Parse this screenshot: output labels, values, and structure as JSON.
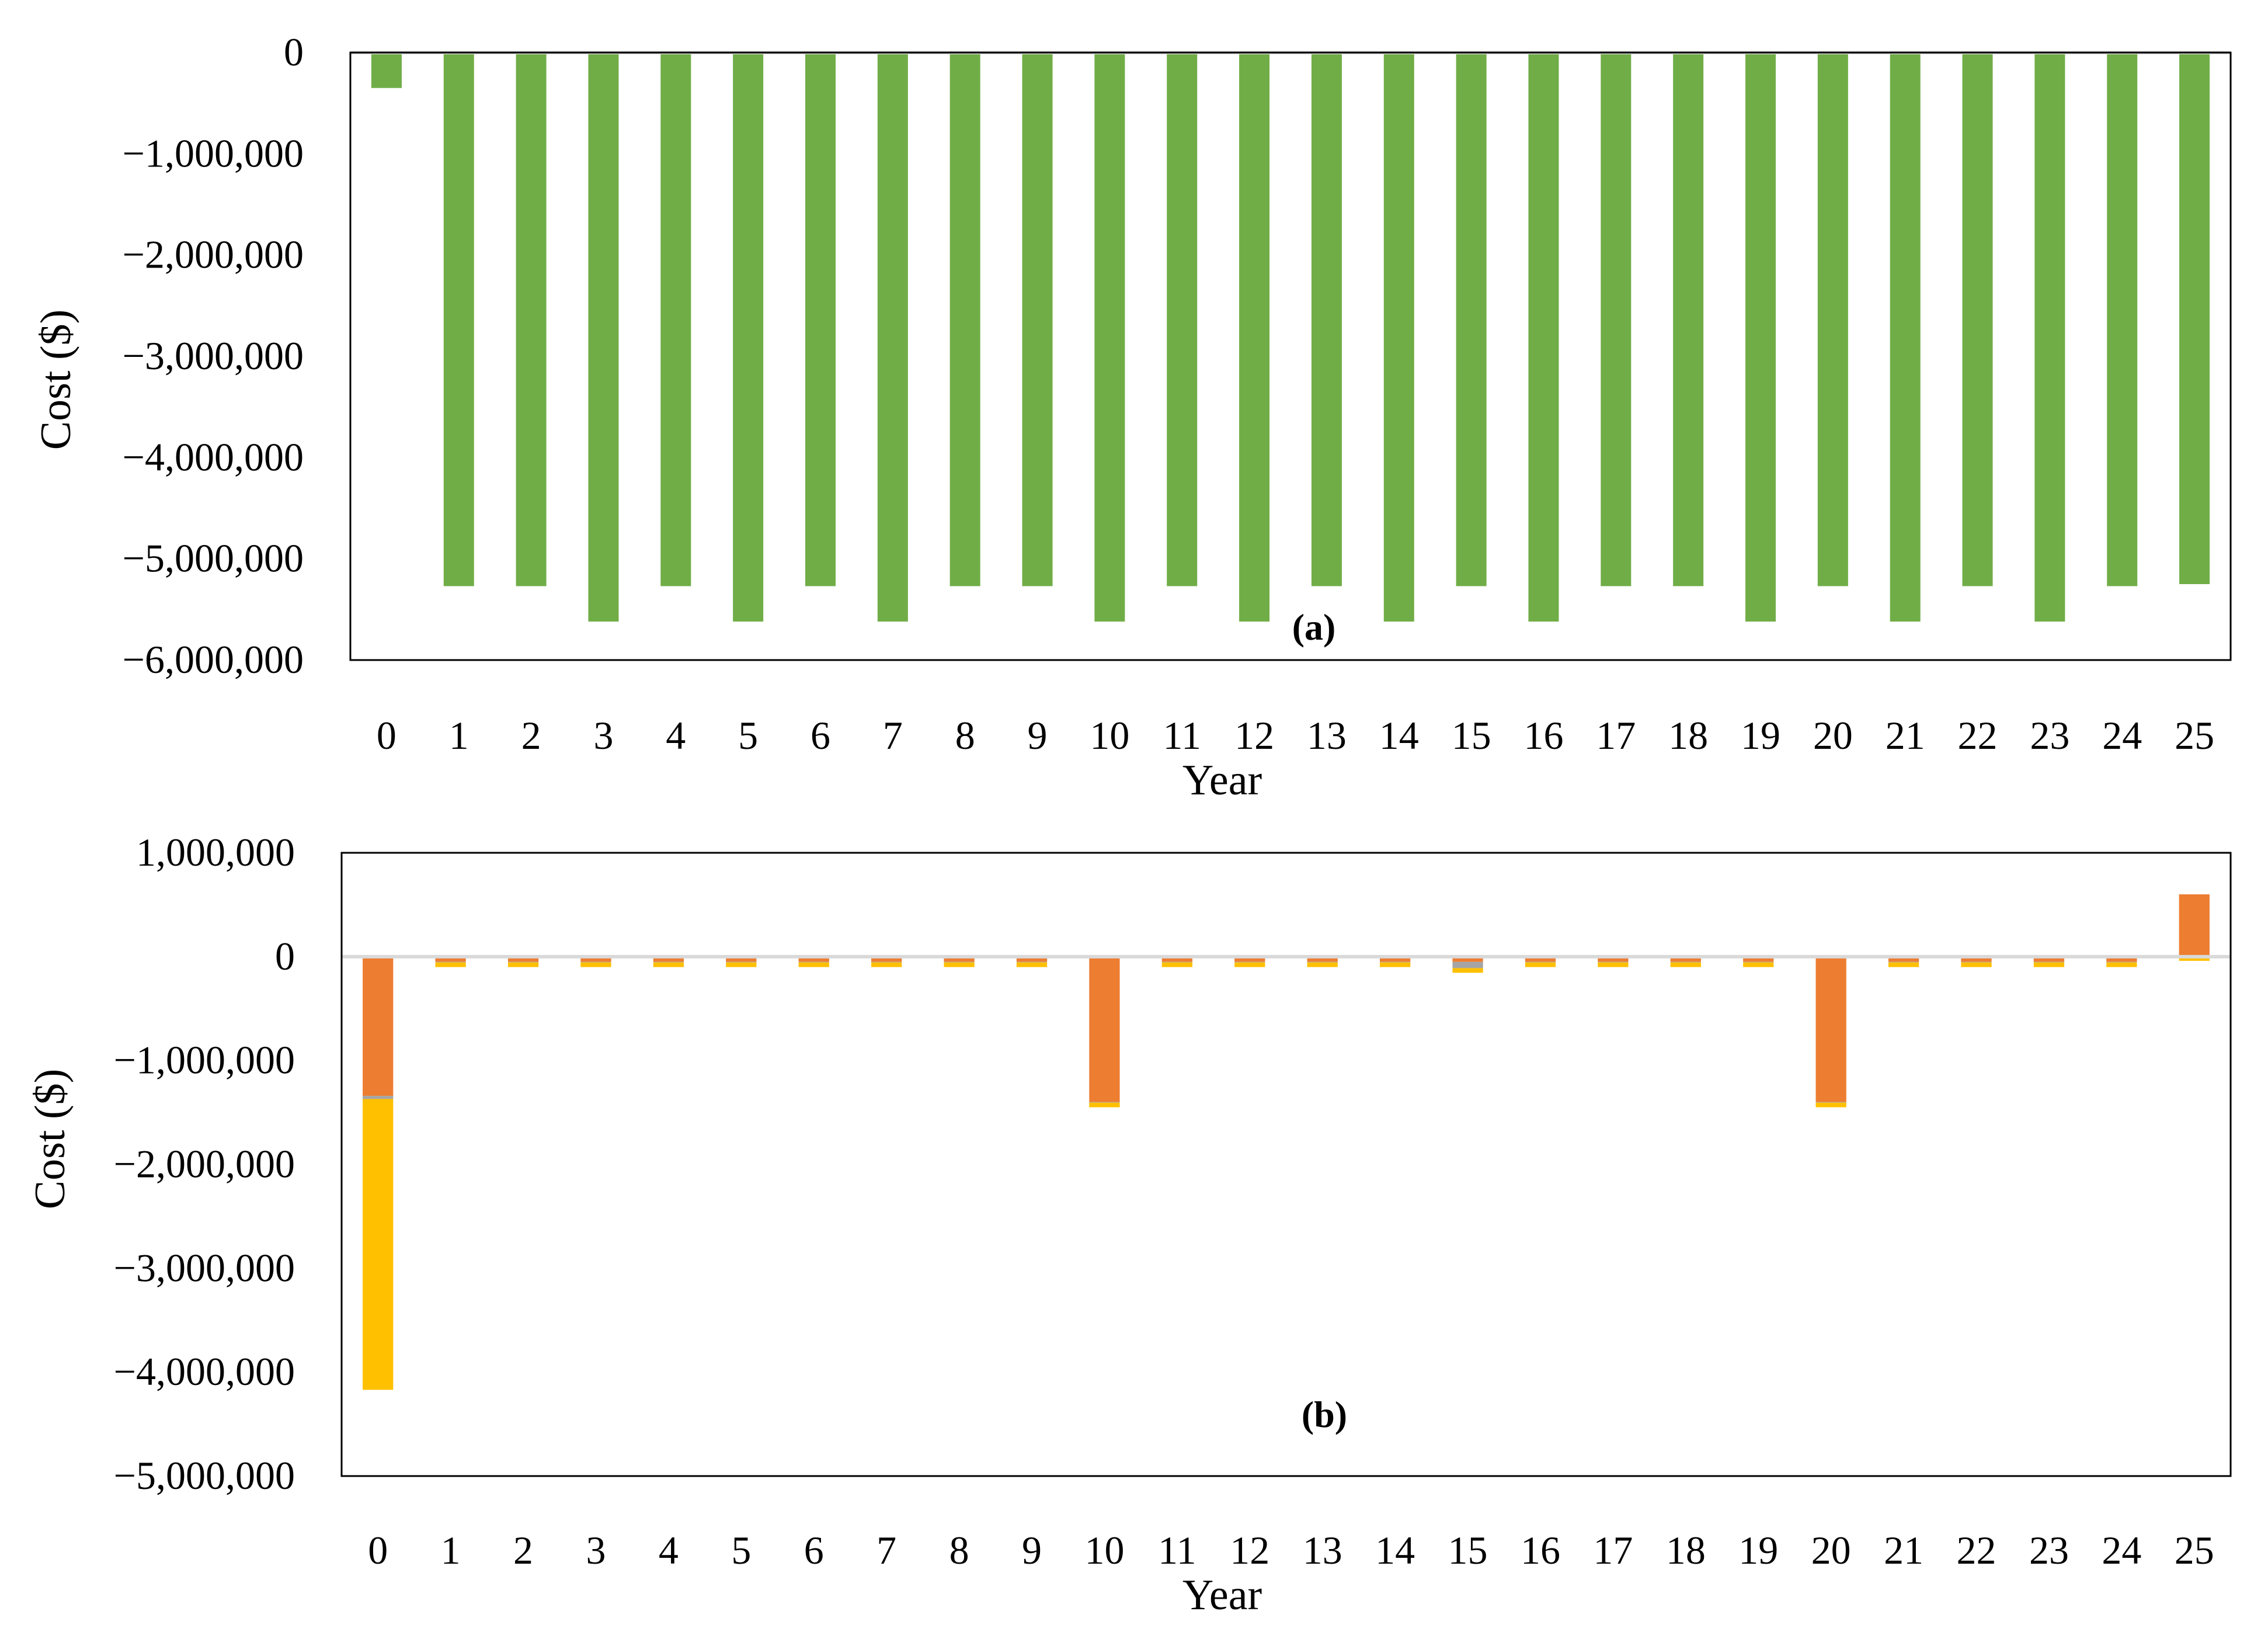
{
  "colors": {
    "green": "#70AD47",
    "orange": "#ED7D31",
    "yellow": "#FFC000",
    "gray": "#A5A5A5",
    "zero_line": "#D9D9D9",
    "frame": "#000000"
  },
  "chart_data": [
    {
      "type": "bar",
      "panel_label": "(a)",
      "xlabel": "Year",
      "ylabel": "Cost ($)",
      "ylim": [
        -6000000,
        0
      ],
      "yticks": [
        0,
        -1000000,
        -2000000,
        -3000000,
        -4000000,
        -5000000,
        -6000000
      ],
      "ytick_labels": [
        "0",
        "−1,000,000",
        "−2,000,000",
        "−3,000,000",
        "−4,000,000",
        "−5,000,000",
        "−6,000,000"
      ],
      "categories": [
        "0",
        "1",
        "2",
        "3",
        "4",
        "5",
        "6",
        "7",
        "8",
        "9",
        "10",
        "11",
        "12",
        "13",
        "14",
        "15",
        "16",
        "17",
        "18",
        "19",
        "20",
        "21",
        "22",
        "23",
        "24",
        "25"
      ],
      "grid": false,
      "series": [
        {
          "color": "#70AD47",
          "values": [
            -350000,
            -5270000,
            -5270000,
            -5620000,
            -5270000,
            -5620000,
            -5270000,
            -5620000,
            -5270000,
            -5270000,
            -5620000,
            -5270000,
            -5620000,
            -5270000,
            -5620000,
            -5270000,
            -5620000,
            -5270000,
            -5270000,
            -5620000,
            -5270000,
            -5620000,
            -5270000,
            -5620000,
            -5270000,
            -5250000
          ]
        }
      ]
    },
    {
      "type": "bar",
      "stacked": true,
      "panel_label": "(b)",
      "xlabel": "Year",
      "ylabel": "Cost ($)",
      "ylim": [
        -5000000,
        1000000
      ],
      "yticks": [
        1000000,
        0,
        -1000000,
        -2000000,
        -3000000,
        -4000000,
        -5000000
      ],
      "ytick_labels": [
        "1,000,000",
        "0",
        "−1,000,000",
        "−2,000,000",
        "−3,000,000",
        "−4,000,000",
        "−5,000,000"
      ],
      "categories": [
        "0",
        "1",
        "2",
        "3",
        "4",
        "5",
        "6",
        "7",
        "8",
        "9",
        "10",
        "11",
        "12",
        "13",
        "14",
        "15",
        "16",
        "17",
        "18",
        "19",
        "20",
        "21",
        "22",
        "23",
        "24",
        "25"
      ],
      "grid": false,
      "series": [
        {
          "color": "#ED7D31",
          "values": [
            -1340000,
            -50000,
            -50000,
            -50000,
            -50000,
            -50000,
            -50000,
            -50000,
            -50000,
            -50000,
            -1400000,
            -50000,
            -50000,
            -50000,
            -50000,
            -50000,
            -50000,
            -50000,
            -50000,
            -50000,
            -1400000,
            -50000,
            -50000,
            -50000,
            -50000,
            600000
          ]
        },
        {
          "color": "#A5A5A5",
          "values": [
            -30000,
            -5000,
            -5000,
            -5000,
            -5000,
            -5000,
            -5000,
            -5000,
            -5000,
            -5000,
            -5000,
            -5000,
            -5000,
            -5000,
            -5000,
            -60000,
            -5000,
            -5000,
            -5000,
            -5000,
            -5000,
            -5000,
            -5000,
            -5000,
            -5000,
            0
          ]
        },
        {
          "color": "#FFC000",
          "values": [
            -2800000,
            -45000,
            -45000,
            -45000,
            -45000,
            -45000,
            -45000,
            -45000,
            -45000,
            -45000,
            -45000,
            -45000,
            -45000,
            -45000,
            -45000,
            -45000,
            -45000,
            -45000,
            -45000,
            -45000,
            -45000,
            -45000,
            -45000,
            -45000,
            -45000,
            -40000
          ]
        }
      ]
    }
  ]
}
